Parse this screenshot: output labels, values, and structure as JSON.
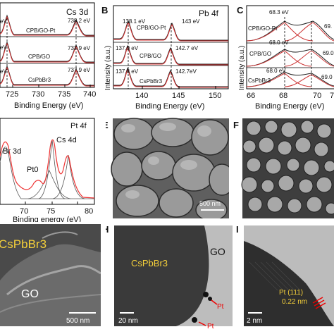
{
  "figure": {
    "panels": {
      "A": {
        "title": "Cs 3d",
        "xlabel": "Binding Energy (eV)",
        "xticks": [
          "725",
          "730",
          "735",
          "740"
        ],
        "traces": [
          {
            "name": "CPB/GO-Pt",
            "peak_label": "738.2 eV",
            "left_label": "eV"
          },
          {
            "name": "CPB/GO",
            "peak_label": "737.9 eV",
            "left_label": "eV"
          },
          {
            "name": "CsPbBr3",
            "peak_label": "737.9 eV",
            "left_label": "eV"
          }
        ]
      },
      "B": {
        "letter": "B",
        "title": "Pb 4f",
        "xlabel": "Binding Energy (eV)",
        "ylabel": "Intensity (a.u.)",
        "xticks": [
          "140",
          "145",
          "150"
        ],
        "traces": [
          {
            "name": "CPB/GO-Pt",
            "peak1": "138.1 eV",
            "peak2": "143 eV"
          },
          {
            "name": "CPB/GO",
            "peak1": "137.9 eV",
            "peak2": "142.7 eV"
          },
          {
            "name": "CsPbBr3",
            "peak1": "137.8 eV",
            "peak2": "142.7eV"
          }
        ]
      },
      "C": {
        "letter": "C",
        "ylabel": "Intensity (a.u.)",
        "xlabel": "Binding Energy (eV)",
        "xticks": [
          "66",
          "68",
          "70",
          "7"
        ],
        "traces": [
          {
            "name": "CPB/GO-Pt",
            "peak1": "68.3 eV",
            "peak2": "69."
          },
          {
            "name": "CPB/GO",
            "peak1": "68.0 eV",
            "peak2": "69.0"
          },
          {
            "name": "CsPbBr3",
            "peak1": "68.0 eV",
            "peak2": "69.0"
          }
        ]
      },
      "D": {
        "title": "Pt 4f",
        "labels": [
          "Br 3d",
          "Pt0",
          "Cs 4d"
        ],
        "xlabel": "Binding energy (eV)",
        "xticks": [
          "70",
          "75",
          "80"
        ]
      },
      "E": {
        "letter": "E",
        "scale": "500 nm"
      },
      "F": {
        "letter": "F"
      },
      "G": {
        "label1": "CsPbBr3",
        "label2": "GO",
        "scale": "500 nm"
      },
      "H": {
        "letter": "H",
        "label1": "CsPbBr3",
        "label2": "GO",
        "pt1": "Pt",
        "pt2": "Pt",
        "scale": "20 nm"
      },
      "I": {
        "letter": "I",
        "label1": "Pt  (111)",
        "label2": "0.22 nm",
        "scale": "2 nm"
      }
    }
  }
}
